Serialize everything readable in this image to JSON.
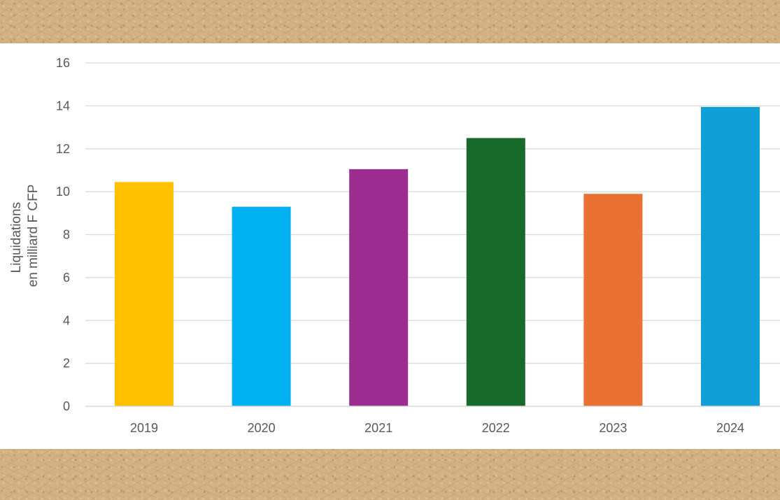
{
  "chart_data": {
    "type": "bar",
    "categories": [
      "2019",
      "2020",
      "2021",
      "2022",
      "2023",
      "2024"
    ],
    "values": [
      10.45,
      9.3,
      11.05,
      12.5,
      9.9,
      13.95
    ],
    "colors": [
      "#ffc000",
      "#00b0f0",
      "#9b2d91",
      "#186a2a",
      "#e97132",
      "#0f9ed5"
    ],
    "title": "",
    "xlabel": "",
    "ylabel": [
      "Liquidations",
      "en milliard F CFP"
    ],
    "ylim": [
      0,
      16
    ],
    "yticks": [
      "0",
      "2",
      "4",
      "6",
      "8",
      "10",
      "12",
      "14",
      "16"
    ],
    "grid": true,
    "legend": "none"
  }
}
